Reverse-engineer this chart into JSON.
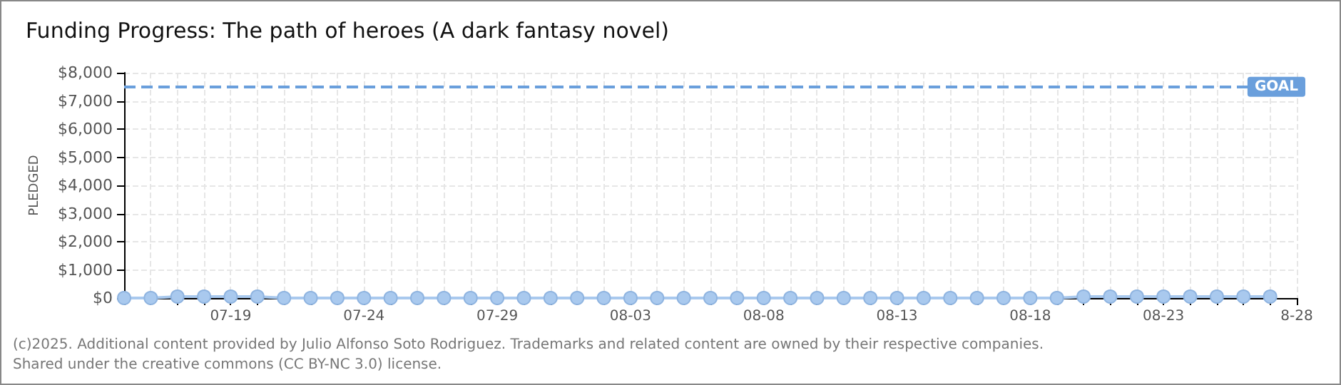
{
  "chart_data": {
    "type": "line",
    "title": "Funding Progress: The path of heroes (A dark fantasy novel)",
    "ylabel": "PLEDGED",
    "x": [
      "--07-15",
      "--07-16",
      "--07-17",
      "--07-18",
      "--07-19",
      "--07-20",
      "--07-21",
      "--07-22",
      "--07-23",
      "--07-24",
      "--07-25",
      "--07-26",
      "--07-27",
      "--07-28",
      "--07-29",
      "--07-30",
      "--07-31",
      "--08-01",
      "--08-02",
      "--08-03",
      "--08-04",
      "--08-05",
      "--08-06",
      "--08-07",
      "--08-08",
      "--08-09",
      "--08-10",
      "--08-11",
      "--08-12",
      "--08-13",
      "--08-14",
      "--08-15",
      "--08-16",
      "--08-17",
      "--08-18",
      "--08-19",
      "--08-20",
      "--08-21",
      "--08-22",
      "--08-23",
      "--08-24",
      "--08-25",
      "--08-26",
      "--08-27"
    ],
    "series": [
      {
        "color": "#a9c9ee",
        "values": [
          0,
          0,
          50,
          50,
          50,
          50,
          0,
          0,
          0,
          0,
          0,
          0,
          0,
          0,
          0,
          0,
          0,
          0,
          0,
          0,
          0,
          0,
          0,
          0,
          0,
          0,
          0,
          0,
          0,
          0,
          0,
          0,
          0,
          0,
          0,
          0,
          50,
          50,
          50,
          50,
          50,
          50,
          50,
          50
        ]
      }
    ],
    "xlim": [
      "--07-15",
      "--08-28"
    ],
    "xticks": [
      {
        "value": "--07-15",
        "label": null
      },
      {
        "value": "--07-16",
        "label": null
      },
      {
        "value": "--07-17",
        "label": null
      },
      {
        "value": "--07-18",
        "label": null
      },
      {
        "value": "--07-19",
        "label": "07-19"
      },
      {
        "value": "--07-20",
        "label": null
      },
      {
        "value": "--07-21",
        "label": null
      },
      {
        "value": "--07-22",
        "label": null
      },
      {
        "value": "--07-23",
        "label": null
      },
      {
        "value": "--07-24",
        "label": "07-24"
      },
      {
        "value": "--07-25",
        "label": null
      },
      {
        "value": "--07-26",
        "label": null
      },
      {
        "value": "--07-27",
        "label": null
      },
      {
        "value": "--07-28",
        "label": null
      },
      {
        "value": "--07-29",
        "label": "07-29"
      },
      {
        "value": "--07-30",
        "label": null
      },
      {
        "value": "--07-31",
        "label": null
      },
      {
        "value": "--08-01",
        "label": null
      },
      {
        "value": "--08-02",
        "label": null
      },
      {
        "value": "--08-03",
        "label": "08-03"
      },
      {
        "value": "--08-04",
        "label": null
      },
      {
        "value": "--08-05",
        "label": null
      },
      {
        "value": "--08-06",
        "label": null
      },
      {
        "value": "--08-07",
        "label": null
      },
      {
        "value": "--08-08",
        "label": "08-08"
      },
      {
        "value": "--08-09",
        "label": null
      },
      {
        "value": "--08-10",
        "label": null
      },
      {
        "value": "--08-11",
        "label": null
      },
      {
        "value": "--08-12",
        "label": null
      },
      {
        "value": "--08-13",
        "label": "08-13"
      },
      {
        "value": "--08-14",
        "label": null
      },
      {
        "value": "--08-15",
        "label": null
      },
      {
        "value": "--08-16",
        "label": null
      },
      {
        "value": "--08-17",
        "label": null
      },
      {
        "value": "--08-18",
        "label": "08-18"
      },
      {
        "value": "--08-19",
        "label": null
      },
      {
        "value": "--08-20",
        "label": null
      },
      {
        "value": "--08-21",
        "label": null
      },
      {
        "value": "--08-22",
        "label": null
      },
      {
        "value": "--08-23",
        "label": "08-23"
      },
      {
        "value": "--08-24",
        "label": null
      },
      {
        "value": "--08-25",
        "label": null
      },
      {
        "value": "--08-26",
        "label": null
      },
      {
        "value": "--08-27",
        "label": null
      },
      {
        "value": "--08-28",
        "label": "8-28"
      }
    ],
    "ylim": [
      0,
      8000
    ],
    "yticks": [
      {
        "value": 0,
        "label": "$0"
      },
      {
        "value": 1000,
        "label": "$1,000"
      },
      {
        "value": 2000,
        "label": "$2,000"
      },
      {
        "value": 3000,
        "label": "$3,000"
      },
      {
        "value": 4000,
        "label": "$4,000"
      },
      {
        "value": 5000,
        "label": "$5,000"
      },
      {
        "value": 6000,
        "label": "$6,000"
      },
      {
        "value": 7000,
        "label": "$7,000"
      },
      {
        "value": 8000,
        "label": "$8,000"
      }
    ],
    "ref_lines": [
      {
        "axis": "y",
        "value": 7500,
        "label": "GOAL",
        "color": "#6a9fdc",
        "line_style": "dashed"
      }
    ],
    "annotations": [
      "(c)2025. Additional content provided by Julio Alfonso Soto Rodriguez. Trademarks and related content are owned by their respective companies.",
      "Shared under the creative commons (CC BY-NC 3.0) license."
    ],
    "grid": true,
    "marker": "circle",
    "line_style": "solid"
  }
}
